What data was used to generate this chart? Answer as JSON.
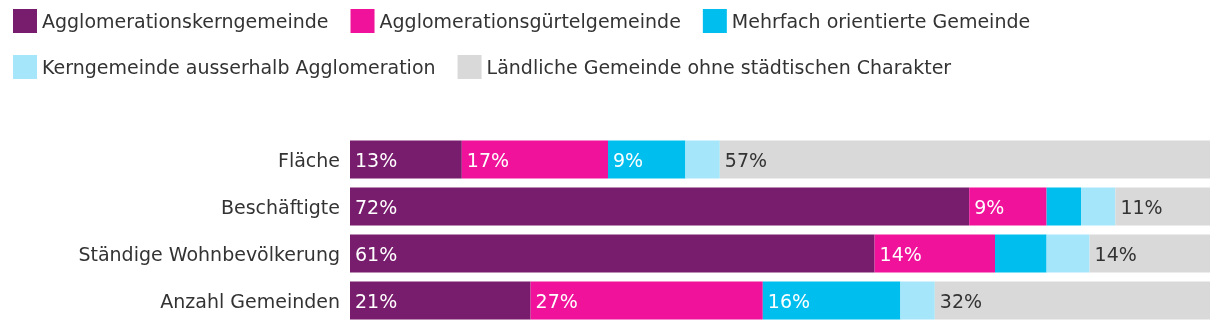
{
  "chart_data": {
    "type": "bar",
    "stacked": true,
    "orientation": "horizontal",
    "legend": "top left",
    "categories": [
      "Fläche",
      "Beschäftigte",
      "Ständige Wohnbevölkerung",
      "Anzahl Gemeinden"
    ],
    "series": [
      {
        "name": "Agglomerationskerngemeinde",
        "color": "#781c6d",
        "values": [
          13,
          72,
          61,
          21
        ],
        "value_labels": [
          "13%",
          "72%",
          "61%",
          "21%"
        ]
      },
      {
        "name": "Agglomerationsgürtelgemeinde",
        "color": "#f0129a",
        "values": [
          17,
          9,
          14,
          27
        ],
        "value_labels": [
          "17%",
          "9%",
          "14%",
          "27%"
        ]
      },
      {
        "name": "Mehrfach orientierte Gemeinde",
        "color": "#00bfef",
        "values": [
          9,
          4,
          6,
          16
        ],
        "value_labels": [
          "9%",
          null,
          null,
          "16%"
        ]
      },
      {
        "name": "Kerngemeinde ausserhalb Agglomeration",
        "color": "#a6e6fb",
        "values": [
          4,
          4,
          5,
          4
        ],
        "value_labels": [
          null,
          null,
          null,
          null
        ]
      },
      {
        "name": "Ländliche Gemeinde ohne städtischen Charakter",
        "color": "#d9d9d9",
        "values": [
          57,
          11,
          14,
          32
        ],
        "value_labels": [
          "57%",
          "11%",
          "14%",
          "32%"
        ]
      }
    ]
  }
}
